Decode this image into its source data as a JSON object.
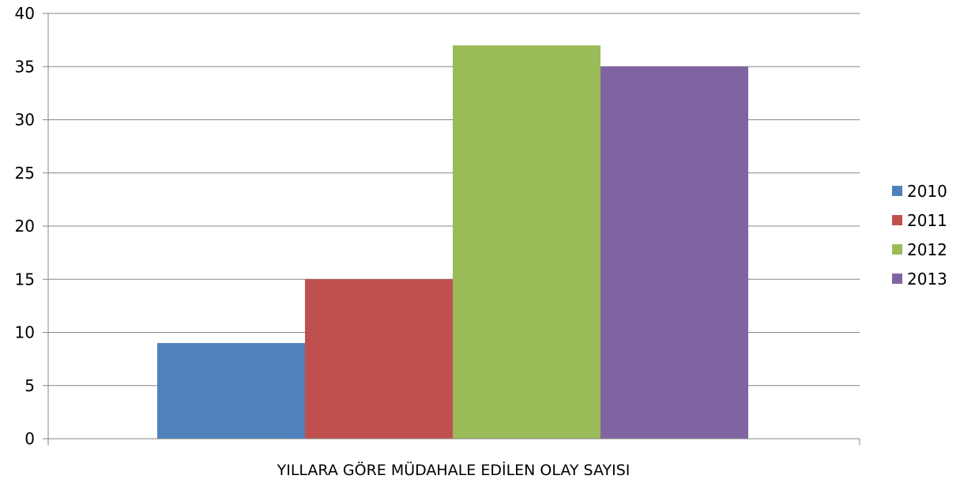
{
  "chart_data": {
    "type": "bar",
    "categories": [
      "YILLARA GÖRE MÜDAHALE EDİLEN OLAY SAYISI"
    ],
    "series": [
      {
        "name": "2010",
        "values": [
          9
        ],
        "color": "#4f81bd"
      },
      {
        "name": "2011",
        "values": [
          15
        ],
        "color": "#c0504d"
      },
      {
        "name": "2012",
        "values": [
          37
        ],
        "color": "#9bbb59"
      },
      {
        "name": "2013",
        "values": [
          35
        ],
        "color": "#8064a2"
      }
    ],
    "yticks": [
      "0",
      "5",
      "10",
      "15",
      "20",
      "25",
      "30",
      "35",
      "40"
    ],
    "ylim": [
      0,
      40
    ],
    "grid": true,
    "legend_position": "right",
    "title": "",
    "xlabel": "",
    "ylabel": ""
  }
}
